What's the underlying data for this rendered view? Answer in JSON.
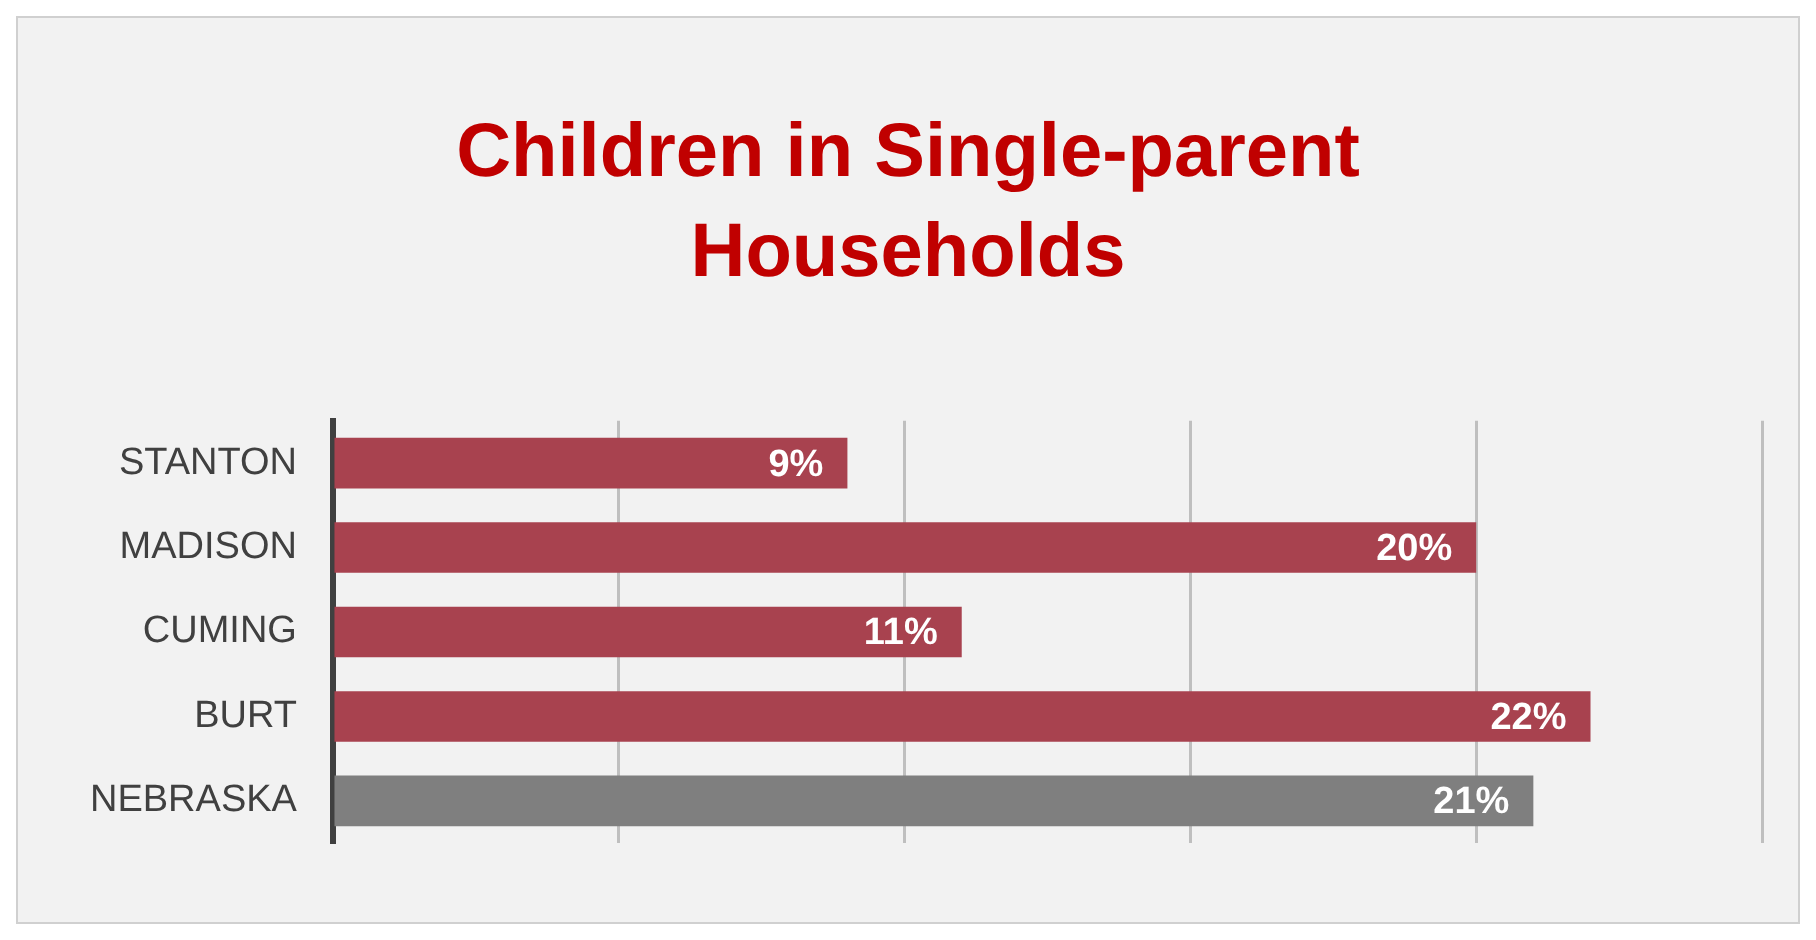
{
  "chart_data": {
    "type": "bar",
    "orientation": "horizontal",
    "title": "Children in Single-parent Households",
    "categories": [
      "STANTON",
      "MADISON",
      "CUMING",
      "BURT",
      "NEBRASKA"
    ],
    "values": [
      9,
      20,
      11,
      22,
      21
    ],
    "colors": [
      "#a8424f",
      "#a8424f",
      "#a8424f",
      "#a8424f",
      "#7f7f7f"
    ],
    "value_labels": [
      "9%",
      "20%",
      "11%",
      "22%",
      "21%"
    ],
    "xlim": [
      0,
      25
    ],
    "xticks": [
      {
        "value": 0,
        "label": null
      },
      {
        "value": 5,
        "label": null
      },
      {
        "value": 10,
        "label": null
      },
      {
        "value": 15,
        "label": null
      },
      {
        "value": 20,
        "label": null
      },
      {
        "value": 25,
        "label": null
      }
    ],
    "tick_labels": "y",
    "grid": "x",
    "legend": false
  }
}
